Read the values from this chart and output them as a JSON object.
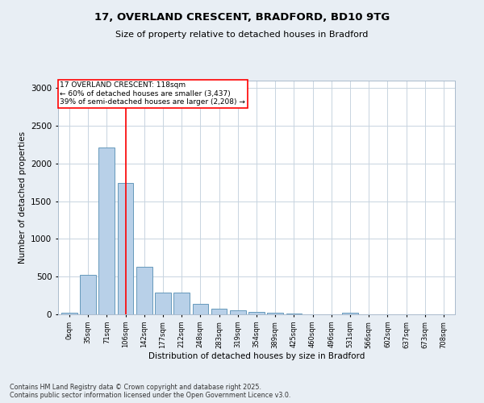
{
  "title1": "17, OVERLAND CRESCENT, BRADFORD, BD10 9TG",
  "title2": "Size of property relative to detached houses in Bradford",
  "xlabel": "Distribution of detached houses by size in Bradford",
  "ylabel": "Number of detached properties",
  "categories": [
    "0sqm",
    "35sqm",
    "71sqm",
    "106sqm",
    "142sqm",
    "177sqm",
    "212sqm",
    "248sqm",
    "283sqm",
    "319sqm",
    "354sqm",
    "389sqm",
    "425sqm",
    "460sqm",
    "496sqm",
    "531sqm",
    "566sqm",
    "602sqm",
    "637sqm",
    "673sqm",
    "708sqm"
  ],
  "bar_values": [
    25,
    520,
    2210,
    1740,
    635,
    290,
    290,
    140,
    75,
    55,
    30,
    25,
    15,
    5,
    0,
    20,
    0,
    0,
    0,
    0,
    0
  ],
  "bar_color": "#b8d0e8",
  "bar_edge_color": "#6699bb",
  "property_bin_index": 3,
  "annotation_title": "17 OVERLAND CRESCENT: 118sqm",
  "annotation_line1": "← 60% of detached houses are smaller (3,437)",
  "annotation_line2": "39% of semi-detached houses are larger (2,208) →",
  "ylim": [
    0,
    3100
  ],
  "yticks": [
    0,
    500,
    1000,
    1500,
    2000,
    2500,
    3000
  ],
  "footer1": "Contains HM Land Registry data © Crown copyright and database right 2025.",
  "footer2": "Contains public sector information licensed under the Open Government Licence v3.0.",
  "bg_color": "#e8eef4",
  "plot_bg_color": "#ffffff",
  "grid_color": "#c8d4e0"
}
